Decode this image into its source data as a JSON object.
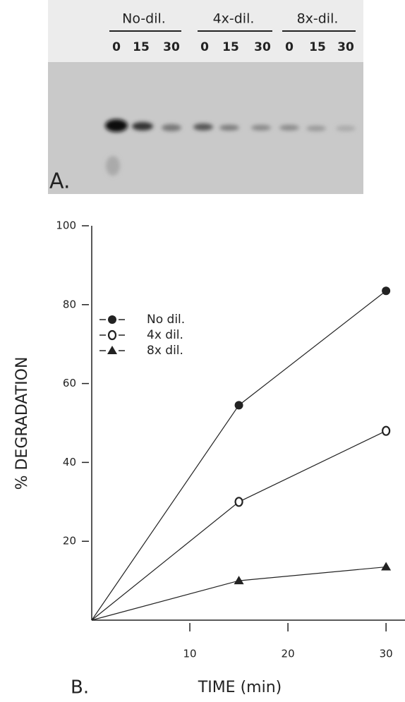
{
  "gel": {
    "groups": [
      {
        "label": "No-dil.",
        "times": [
          0,
          15,
          30
        ]
      },
      {
        "label": "4x-dil.",
        "times": [
          0,
          15,
          30
        ]
      },
      {
        "label": "8x-dil.",
        "times": [
          0,
          15,
          30
        ]
      }
    ],
    "panel_label": "A."
  },
  "chart_data": {
    "type": "line",
    "panel_label": "B.",
    "xlabel": "TIME (min)",
    "ylabel": "% DEGRADATION",
    "x": [
      0,
      15,
      30
    ],
    "series": [
      {
        "name": "No dil.",
        "color": "#222222",
        "marker": "circle",
        "values": [
          0,
          54.5,
          83.5
        ]
      },
      {
        "name": "4x dil.",
        "color": "#222222",
        "marker": "open",
        "values": [
          0,
          30,
          48
        ]
      },
      {
        "name": "8x dil.",
        "color": "#222222",
        "marker": "triangle",
        "values": [
          0,
          10,
          13.5
        ]
      }
    ],
    "xlim": [
      0,
      31.5
    ],
    "ylim": [
      0,
      100
    ],
    "xticks": [
      10,
      20,
      30
    ],
    "yticks": [
      20,
      40,
      60,
      80,
      100
    ]
  }
}
